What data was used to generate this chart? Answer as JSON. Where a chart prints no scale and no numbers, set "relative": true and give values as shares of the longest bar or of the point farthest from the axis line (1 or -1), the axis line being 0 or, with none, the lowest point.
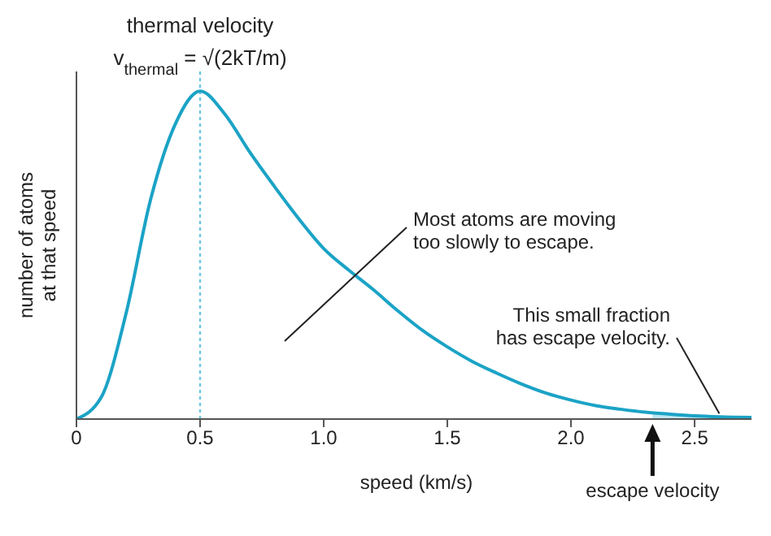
{
  "chart_data": {
    "type": "line",
    "relative": true,
    "xlabel": "speed (km/s)",
    "ylabel": "number of atoms at that speed",
    "x": [
      0,
      0.1,
      0.2,
      0.3,
      0.4,
      0.5,
      0.6,
      0.7,
      0.8,
      0.9,
      1.0,
      1.1,
      1.2,
      1.3,
      1.4,
      1.5,
      1.6,
      1.7,
      1.8,
      1.9,
      2.0,
      2.1,
      2.2,
      2.3,
      2.4,
      2.5,
      2.6,
      2.73
    ],
    "xlim": [
      0,
      2.73
    ],
    "xticks": [
      0,
      0.5,
      {
        "value": 1,
        "label": "1.0"
      },
      1.5,
      {
        "value": 2,
        "label": "2.0"
      },
      2.5
    ],
    "series": [
      {
        "type": "line",
        "color": "#1ba3c6",
        "values": [
          0,
          0.066,
          0.32,
          0.67,
          0.9,
          1,
          0.93,
          0.815,
          0.71,
          0.61,
          0.52,
          0.455,
          0.395,
          0.33,
          0.27,
          0.22,
          0.176,
          0.14,
          0.107,
          0.079,
          0.058,
          0.041,
          0.03,
          0.021,
          0.015,
          0.01,
          0.007,
          0.005
        ]
      },
      {
        "type": "area",
        "color": "#bde6f0",
        "x": [
          2.33,
          2.4,
          2.5,
          2.6,
          2.73
        ],
        "values": [
          0.019,
          0.015,
          0.01,
          0.007,
          0.005
        ]
      }
    ],
    "ref_lines": [
      {
        "axis": "x",
        "value": 0.5,
        "label": "thermal velocity",
        "color": "#6cc6e0",
        "line_style": "dotted"
      }
    ],
    "annotations": [
      "v$_{thermal}$ = √(2kT/m)",
      "Most atoms are moving too slowly to escape.",
      {
        "text": "This small fraction has escape velocity.",
        "x": 2.6,
        "y": 0.007
      },
      "escape velocity"
    ],
    "grid": false,
    "legend": false,
    "marker": "none",
    "line_style": "solid"
  }
}
